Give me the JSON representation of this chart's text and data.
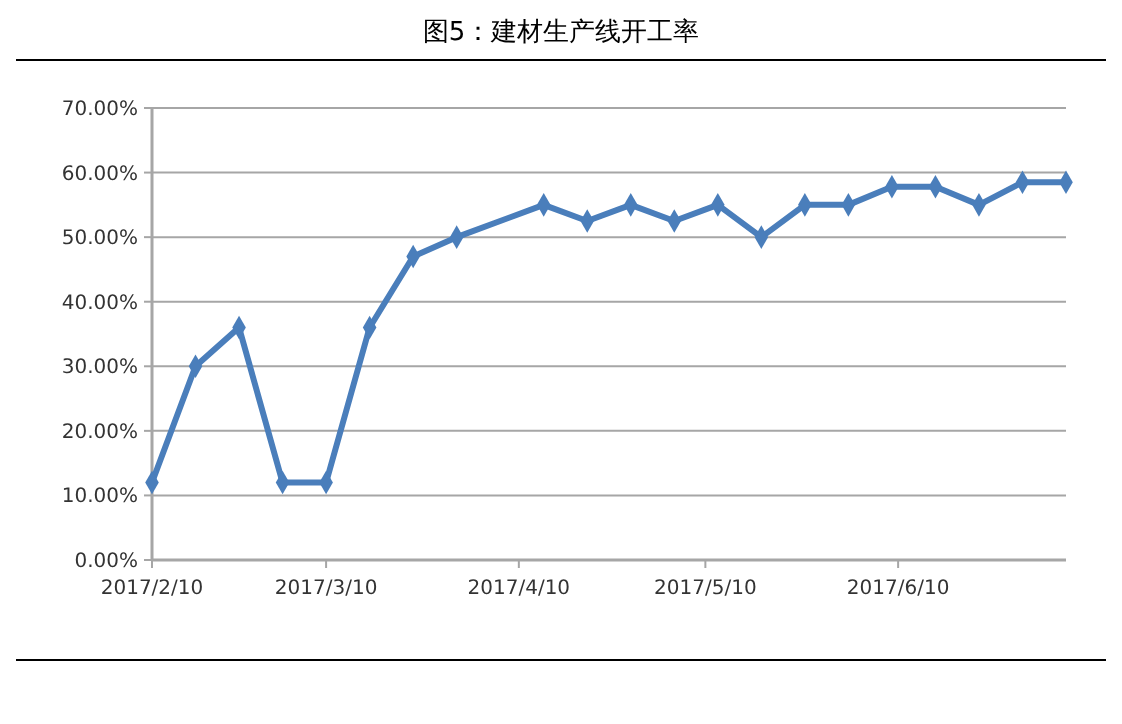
{
  "chart_data": {
    "type": "line",
    "title": "图5：建材生产线开工率",
    "x": [
      "2017-02-10",
      "2017-02-17",
      "2017-02-24",
      "2017-03-03",
      "2017-03-10",
      "2017-03-17",
      "2017-03-24",
      "2017-03-31",
      "2017-04-14",
      "2017-04-21",
      "2017-04-28",
      "2017-05-05",
      "2017-05-12",
      "2017-05-19",
      "2017-05-26",
      "2017-06-02",
      "2017-06-09",
      "2017-06-16",
      "2017-06-23",
      "2017-06-30",
      "2017-07-07"
    ],
    "series": [
      {
        "color": "#4a7ebb",
        "values": [
          12,
          30,
          36,
          12,
          12,
          36,
          47,
          50,
          55,
          52.5,
          55,
          52.5,
          55,
          50,
          55,
          55,
          57.8,
          57.8,
          55,
          58.5,
          58.5
        ]
      }
    ],
    "xlim": [
      "2017-02-10",
      "2017-07-07"
    ],
    "xticks": [
      {
        "value": "2017-02-10",
        "label": "2017/2/10"
      },
      {
        "value": "2017-03-10",
        "label": "2017/3/10"
      },
      {
        "value": "2017-04-10",
        "label": "2017/4/10"
      },
      {
        "value": "2017-05-10",
        "label": "2017/5/10"
      },
      {
        "value": "2017-06-10",
        "label": "2017/6/10"
      }
    ],
    "ylim": [
      0,
      70
    ],
    "yticks": [
      {
        "value": 0,
        "label": "0.00%"
      },
      {
        "value": 10,
        "label": "10.00%"
      },
      {
        "value": 20,
        "label": "20.00%"
      },
      {
        "value": 30,
        "label": "30.00%"
      },
      {
        "value": 40,
        "label": "40.00%"
      },
      {
        "value": 50,
        "label": "50.00%"
      },
      {
        "value": 60,
        "label": "60.00%"
      },
      {
        "value": 70,
        "label": "70.00%"
      }
    ],
    "grid": "y",
    "marker": "diamond",
    "line_style": "solid"
  }
}
